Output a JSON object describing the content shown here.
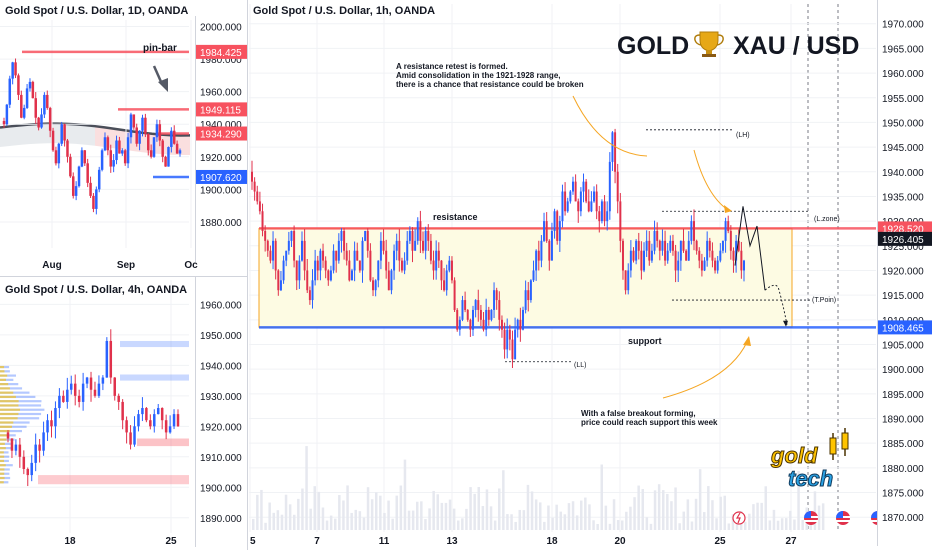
{
  "brand_colors": {
    "accent_gold": "#f5a623",
    "bull": "#2962ff",
    "bear": "#e0314b",
    "resistance": "#f7525f",
    "support": "#2962ff",
    "box_fill": "#fdfbe3",
    "box_border": "#f5a623"
  },
  "logo": {
    "line1": "gold",
    "line2": "tech",
    "text_color": "#ffc400",
    "icon": "candlestick-icon"
  },
  "headline": {
    "left": "GOLD",
    "icon": "trophy-icon",
    "right": "XAU / USD"
  },
  "chart_data": [
    {
      "id": "daily",
      "type": "candlestick",
      "title": "Gold Spot / U.S. Dollar, 1D, OANDA",
      "ylim": [
        1864,
        2004
      ],
      "y_ticks": [
        1880,
        1900,
        1920,
        1940,
        1960,
        1980,
        2000
      ],
      "y_tick_labels": [
        "1880.000",
        "1900.000",
        "1920.000",
        "1940.000",
        "1960.000",
        "1980.000",
        "2000.000"
      ],
      "x_tick_labels": [
        "Aug",
        "Sep",
        "Oc"
      ],
      "levels": [
        {
          "value": 1984.425,
          "label": "1984.425",
          "color": "#f7525f"
        },
        {
          "value": 1949.115,
          "label": "1949.115",
          "color": "#f7525f"
        },
        {
          "value": 1934.29,
          "label": "1934.290",
          "color": "#f7525f"
        },
        {
          "value": 1907.62,
          "label": "1907.620",
          "color": "#2962ff"
        }
      ],
      "annotations": [
        {
          "text": "pin-bar"
        }
      ],
      "closes": [
        1940,
        1952,
        1968,
        1978,
        1970,
        1958,
        1944,
        1950,
        1962,
        1966,
        1956,
        1944,
        1938,
        1946,
        1958,
        1950,
        1936,
        1924,
        1916,
        1928,
        1940,
        1930,
        1920,
        1908,
        1896,
        1902,
        1914,
        1924,
        1916,
        1904,
        1896,
        1888,
        1900,
        1912,
        1924,
        1932,
        1924,
        1914,
        1918,
        1930,
        1922,
        1924,
        1916,
        1932,
        1946,
        1938,
        1928,
        1936,
        1944,
        1934,
        1924,
        1920,
        1932,
        1940,
        1930,
        1920,
        1914,
        1926,
        1936,
        1928,
        1922,
        1924
      ]
    },
    {
      "id": "h4",
      "type": "candlestick",
      "title": "Gold Spot / U.S. Dollar, 4h, OANDA",
      "ylim": [
        1885,
        1968
      ],
      "y_ticks": [
        1890,
        1900,
        1910,
        1920,
        1930,
        1940,
        1950,
        1960
      ],
      "y_tick_labels": [
        "1890.000",
        "1900.000",
        "1910.000",
        "1920.000",
        "1930.000",
        "1940.000",
        "1950.000",
        "1960.000"
      ],
      "x_tick_labels": [
        "18",
        "25"
      ],
      "closes": [
        1916,
        1912,
        1914,
        1910,
        1906,
        1904,
        1908,
        1914,
        1912,
        1918,
        1922,
        1920,
        1926,
        1930,
        1928,
        1932,
        1934,
        1930,
        1928,
        1934,
        1936,
        1932,
        1930,
        1934,
        1936,
        1948,
        1936,
        1930,
        1928,
        1922,
        1918,
        1914,
        1920,
        1924,
        1926,
        1922,
        1920,
        1924,
        1926,
        1922,
        1918,
        1920,
        1924,
        1920
      ]
    },
    {
      "id": "h1",
      "type": "candlestick",
      "title": "Gold Spot / U.S. Dollar, 1h, OANDA",
      "ylim": [
        1867,
        1974
      ],
      "y_ticks": [
        1870,
        1875,
        1880,
        1885,
        1890,
        1895,
        1900,
        1905,
        1910,
        1915,
        1920,
        1925,
        1930,
        1935,
        1940,
        1945,
        1950,
        1955,
        1960,
        1965,
        1970
      ],
      "y_tick_labels": [
        "1870.000",
        "1875.000",
        "1880.000",
        "1885.000",
        "1890.000",
        "1895.000",
        "1900.000",
        "1905.000",
        "1910.000",
        "1915.000",
        "1920.000",
        "1925.000",
        "1930.000",
        "1935.000",
        "1940.000",
        "1945.000",
        "1950.000",
        "1955.000",
        "1960.000",
        "1965.000",
        "1970.000"
      ],
      "x_tick_labels": [
        "5",
        "7",
        "11",
        "13",
        "18",
        "20",
        "25",
        "27"
      ],
      "levels": [
        {
          "value": 1928.52,
          "label": "1928.520",
          "color": "#f7525f"
        },
        {
          "value": 1926.405,
          "label": "1926.405",
          "color": "#131722"
        },
        {
          "value": 1908.465,
          "label": "1908.465",
          "color": "#2962ff"
        }
      ],
      "range_box": {
        "top": 1928.5,
        "bottom": 1908.5
      },
      "labels": {
        "resistance": "resistance",
        "support": "support",
        "lh": "(LH)",
        "ll": "(LL)",
        "l_zone": "(L.zone)",
        "t_point": "(T.Poin)"
      },
      "notes": [
        "A resistance retest is formed.",
        "Amid consolidation in the 1921-1928 range,",
        "there is a chance that resistance could be broken"
      ],
      "notes_bottom": [
        "With a false breakout forming,",
        "price could reach support this week"
      ],
      "closes": [
        1938,
        1936,
        1934,
        1932,
        1928,
        1926,
        1924,
        1922,
        1926,
        1920,
        1916,
        1918,
        1922,
        1924,
        1926,
        1928,
        1922,
        1918,
        1922,
        1926,
        1920,
        1916,
        1914,
        1918,
        1922,
        1920,
        1924,
        1922,
        1920,
        1918,
        1920,
        1924,
        1922,
        1926,
        1928,
        1924,
        1922,
        1918,
        1920,
        1924,
        1922,
        1920,
        1926,
        1928,
        1924,
        1918,
        1916,
        1918,
        1922,
        1926,
        1924,
        1920,
        1916,
        1920,
        1924,
        1926,
        1922,
        1920,
        1922,
        1926,
        1928,
        1924,
        1926,
        1930,
        1926,
        1924,
        1928,
        1926,
        1922,
        1920,
        1924,
        1922,
        1918,
        1916,
        1920,
        1922,
        1918,
        1912,
        1908,
        1910,
        1914,
        1912,
        1910,
        1908,
        1912,
        1914,
        1912,
        1910,
        1908,
        1912,
        1910,
        1912,
        1916,
        1914,
        1910,
        1908,
        1904,
        1908,
        1906,
        1902,
        1908,
        1910,
        1908,
        1912,
        1916,
        1914,
        1918,
        1920,
        1924,
        1922,
        1926,
        1930,
        1926,
        1922,
        1928,
        1932,
        1926,
        1930,
        1936,
        1932,
        1934,
        1936,
        1938,
        1934,
        1932,
        1936,
        1938,
        1934,
        1932,
        1934,
        1936,
        1932,
        1930,
        1934,
        1930,
        1932,
        1942,
        1948,
        1940,
        1934,
        1926,
        1920,
        1916,
        1920,
        1924,
        1922,
        1926,
        1924,
        1920,
        1924,
        1926,
        1922,
        1924,
        1928,
        1926,
        1924,
        1926,
        1922,
        1924,
        1926,
        1924,
        1920,
        1922,
        1926,
        1924,
        1922,
        1926,
        1930,
        1926,
        1924,
        1922,
        1920,
        1922,
        1926,
        1924,
        1922,
        1920,
        1922,
        1924,
        1926,
        1930,
        1928,
        1924,
        1922,
        1926,
        1924,
        1920,
        1922
      ]
    }
  ]
}
